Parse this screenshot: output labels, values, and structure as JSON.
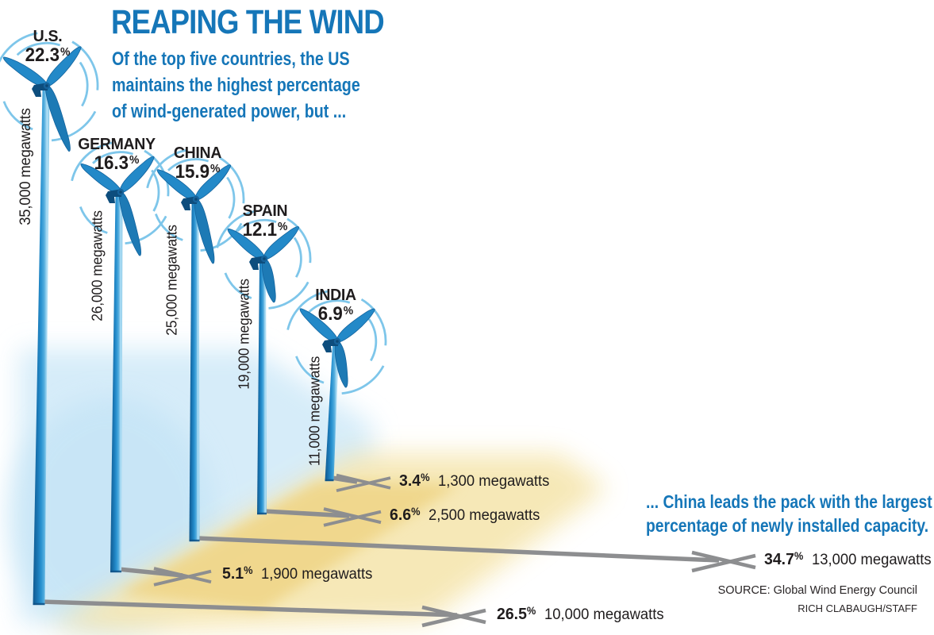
{
  "header": {
    "title": "REAPING THE WIND",
    "subtitle_lines": [
      "Of the top five countries, the US",
      "maintains the highest percentage",
      "of wind-generated power, but ..."
    ]
  },
  "callout": {
    "lines": [
      "... China leads the pack with the largest",
      "percentage of newly installed capacity."
    ]
  },
  "footer": {
    "source": "SOURCE: Global Wind Energy Council",
    "credit": "RICH CLABAUGH/STAFF"
  },
  "chart_data": {
    "type": "bar",
    "variant": "pictorial-wind-turbines",
    "title": "REAPING THE WIND",
    "units": "megawatts",
    "percent_sign": "%",
    "series": [
      {
        "name": "Total installed capacity (standing turbines)"
      },
      {
        "name": "Newly installed capacity (ground shadow lines)"
      }
    ],
    "countries": [
      {
        "name": "U.S.",
        "installed_share_pct": "22.3",
        "installed_mw": 35000,
        "installed_label": "35,000 megawatts",
        "new_share_pct": "26.5",
        "new_mw": 10000,
        "new_label": "10,000 megawatts"
      },
      {
        "name": "GERMANY",
        "installed_share_pct": "16.3",
        "installed_mw": 26000,
        "installed_label": "26,000 megawatts",
        "new_share_pct": "5.1",
        "new_mw": 1900,
        "new_label": "1,900 megawatts"
      },
      {
        "name": "CHINA",
        "installed_share_pct": "15.9",
        "installed_mw": 25000,
        "installed_label": "25,000 megawatts",
        "new_share_pct": "34.7",
        "new_mw": 13000,
        "new_label": "13,000 megawatts"
      },
      {
        "name": "SPAIN",
        "installed_share_pct": "12.1",
        "installed_mw": 19000,
        "installed_label": "19,000 megawatts",
        "new_share_pct": "6.6",
        "new_mw": 2500,
        "new_label": "2,500 megawatts"
      },
      {
        "name": "INDIA",
        "installed_share_pct": "6.9",
        "installed_mw": 11000,
        "installed_label": "11,000 megawatts",
        "new_share_pct": "3.4",
        "new_mw": 1300,
        "new_label": "1,300 megawatts"
      }
    ]
  },
  "colors": {
    "accent_blue": "#1576b8",
    "turbine_blue": "#2389c8",
    "turbine_dark_blue": "#12639e",
    "turbine_light_blue": "#8ecdec",
    "arc_blue": "#7ec6ea",
    "nacelle_blue": "#0d4d7d",
    "shadow_gray": "#8d8e90",
    "sky_wash": "#cfe9f8",
    "ground_wash": "#f2d992",
    "text_black": "#1f1c1d"
  }
}
